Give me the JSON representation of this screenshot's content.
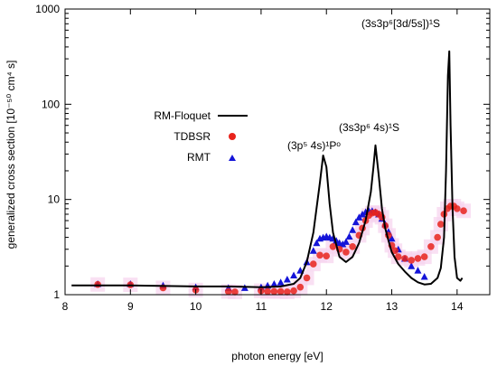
{
  "chart_data": {
    "type": "line",
    "xlabel": "photon energy [eV]",
    "ylabel": "generalized cross section [10⁻⁵⁰ cm⁴ s]",
    "xlim": [
      8,
      14.5
    ],
    "ylim": [
      1,
      1000
    ],
    "yscale": "log",
    "x_ticks": [
      "8",
      "9",
      "10",
      "11",
      "12",
      "13",
      "14"
    ],
    "y_ticks": [
      "1",
      "10",
      "100",
      "1000"
    ],
    "legend_position": "left, upper-middle",
    "series": [
      {
        "name": "RM-Floquet",
        "style": "line",
        "color": "#000000",
        "x": [
          8.1,
          9.0,
          10.0,
          10.5,
          11.0,
          11.3,
          11.5,
          11.6,
          11.7,
          11.8,
          11.9,
          11.95,
          12.0,
          12.05,
          12.1,
          12.2,
          12.3,
          12.4,
          12.5,
          12.6,
          12.68,
          12.72,
          12.75,
          12.8,
          12.85,
          12.9,
          12.95,
          13.0,
          13.1,
          13.2,
          13.3,
          13.4,
          13.5,
          13.6,
          13.7,
          13.75,
          13.8,
          13.83,
          13.86,
          13.88,
          13.9,
          13.93,
          13.96,
          14.0,
          14.05,
          14.08
        ],
        "y": [
          1.25,
          1.25,
          1.22,
          1.22,
          1.2,
          1.22,
          1.3,
          1.5,
          2.2,
          4.5,
          15,
          29,
          22,
          9,
          4.5,
          2.5,
          2.2,
          2.5,
          3.5,
          6,
          12,
          22,
          37,
          18,
          8,
          5,
          3.7,
          2.8,
          2.1,
          1.75,
          1.5,
          1.35,
          1.28,
          1.3,
          1.5,
          1.9,
          4,
          20,
          200,
          360,
          60,
          8,
          2.5,
          1.5,
          1.4,
          1.5
        ]
      },
      {
        "name": "TDBSR",
        "style": "circles",
        "color": "#e8231c",
        "x": [
          8.5,
          9.0,
          9.5,
          10.0,
          10.5,
          10.6,
          11.0,
          11.1,
          11.2,
          11.3,
          11.4,
          11.5,
          11.6,
          11.7,
          11.8,
          11.9,
          12.0,
          12.1,
          12.2,
          12.3,
          12.4,
          12.5,
          12.55,
          12.6,
          12.65,
          12.7,
          12.75,
          12.8,
          12.85,
          12.9,
          12.95,
          13.0,
          13.05,
          13.1,
          13.2,
          13.3,
          13.4,
          13.5,
          13.6,
          13.7,
          13.75,
          13.8,
          13.85,
          13.9,
          13.95,
          14.0,
          14.1
        ],
        "y": [
          1.28,
          1.27,
          1.18,
          1.12,
          1.08,
          1.07,
          1.1,
          1.08,
          1.08,
          1.08,
          1.07,
          1.1,
          1.2,
          1.5,
          2.1,
          2.6,
          2.55,
          3.2,
          3.0,
          2.8,
          3.2,
          4.2,
          5.0,
          6.0,
          6.8,
          7.2,
          7.3,
          7.0,
          6.5,
          5.3,
          4.2,
          3.3,
          2.9,
          2.5,
          2.4,
          2.3,
          2.4,
          2.5,
          3.2,
          4.0,
          5.5,
          7.0,
          8.0,
          8.5,
          8.5,
          8.0,
          7.6
        ]
      },
      {
        "name": "RMT",
        "style": "triangles",
        "color": "#1414d8",
        "x": [
          8.5,
          9.0,
          9.5,
          10.0,
          10.5,
          10.75,
          11.0,
          11.1,
          11.2,
          11.3,
          11.4,
          11.5,
          11.6,
          11.7,
          11.8,
          11.85,
          11.9,
          11.95,
          12.0,
          12.05,
          12.1,
          12.15,
          12.2,
          12.25,
          12.3,
          12.35,
          12.4,
          12.45,
          12.5,
          12.55,
          12.6,
          12.65,
          12.7,
          12.75,
          12.8,
          12.85,
          12.9,
          12.95,
          13.0,
          13.1,
          13.2,
          13.3,
          13.4,
          13.5
        ],
        "y": [
          1.3,
          1.3,
          1.25,
          1.2,
          1.18,
          1.18,
          1.2,
          1.25,
          1.3,
          1.35,
          1.45,
          1.6,
          1.8,
          2.2,
          2.9,
          3.5,
          3.9,
          4.0,
          4.1,
          4.0,
          3.9,
          3.7,
          3.5,
          3.4,
          3.6,
          4.1,
          4.8,
          5.8,
          6.5,
          7.0,
          7.4,
          7.6,
          7.6,
          7.4,
          7.0,
          6.3,
          5.5,
          4.6,
          3.9,
          3.0,
          2.4,
          2.0,
          1.8,
          1.55
        ]
      }
    ],
    "annotations": [
      {
        "text": "(3s3p⁶[3d/5s])¹S",
        "x": 13.6,
        "y": 600
      },
      {
        "text": "(3s3p⁶ 4s)¹S",
        "x": 12.7,
        "y": 45
      },
      {
        "text": "(3p⁵ 4s)¹Pᵒ",
        "x": 12.05,
        "y": 38
      }
    ]
  }
}
